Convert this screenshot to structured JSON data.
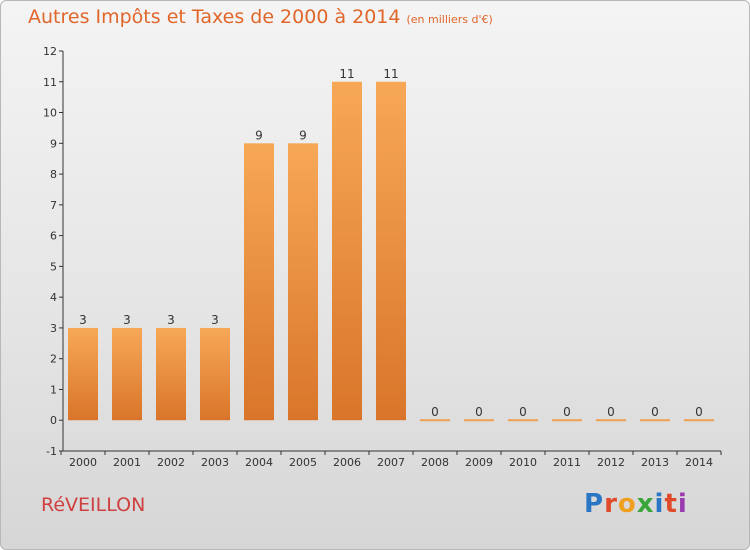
{
  "title": "Autres Impôts et Taxes de 2000 à 2014",
  "unit": "(en milliers d'€)",
  "commune": "RéVEILLON",
  "logo_text": "Proxiti",
  "colors": {
    "bar_light": "#f7a857",
    "bar_dark": "#d9752a",
    "title": "#e0662a",
    "commune": "#d04040"
  },
  "chart_data": {
    "type": "bar",
    "title": "Autres Impôts et Taxes de 2000 à 2014",
    "xlabel": "",
    "ylabel": "",
    "categories": [
      "2000",
      "2001",
      "2002",
      "2003",
      "2004",
      "2005",
      "2006",
      "2007",
      "2008",
      "2009",
      "2010",
      "2011",
      "2012",
      "2013",
      "2014"
    ],
    "values": [
      3,
      3,
      3,
      3,
      9,
      9,
      11,
      11,
      0,
      0,
      0,
      0,
      0,
      0,
      0
    ],
    "ylim": [
      -1,
      12
    ],
    "yticks": [
      -1,
      0,
      1,
      2,
      3,
      4,
      5,
      6,
      7,
      8,
      9,
      10,
      11,
      12
    ],
    "grid": false,
    "legend": "none"
  }
}
